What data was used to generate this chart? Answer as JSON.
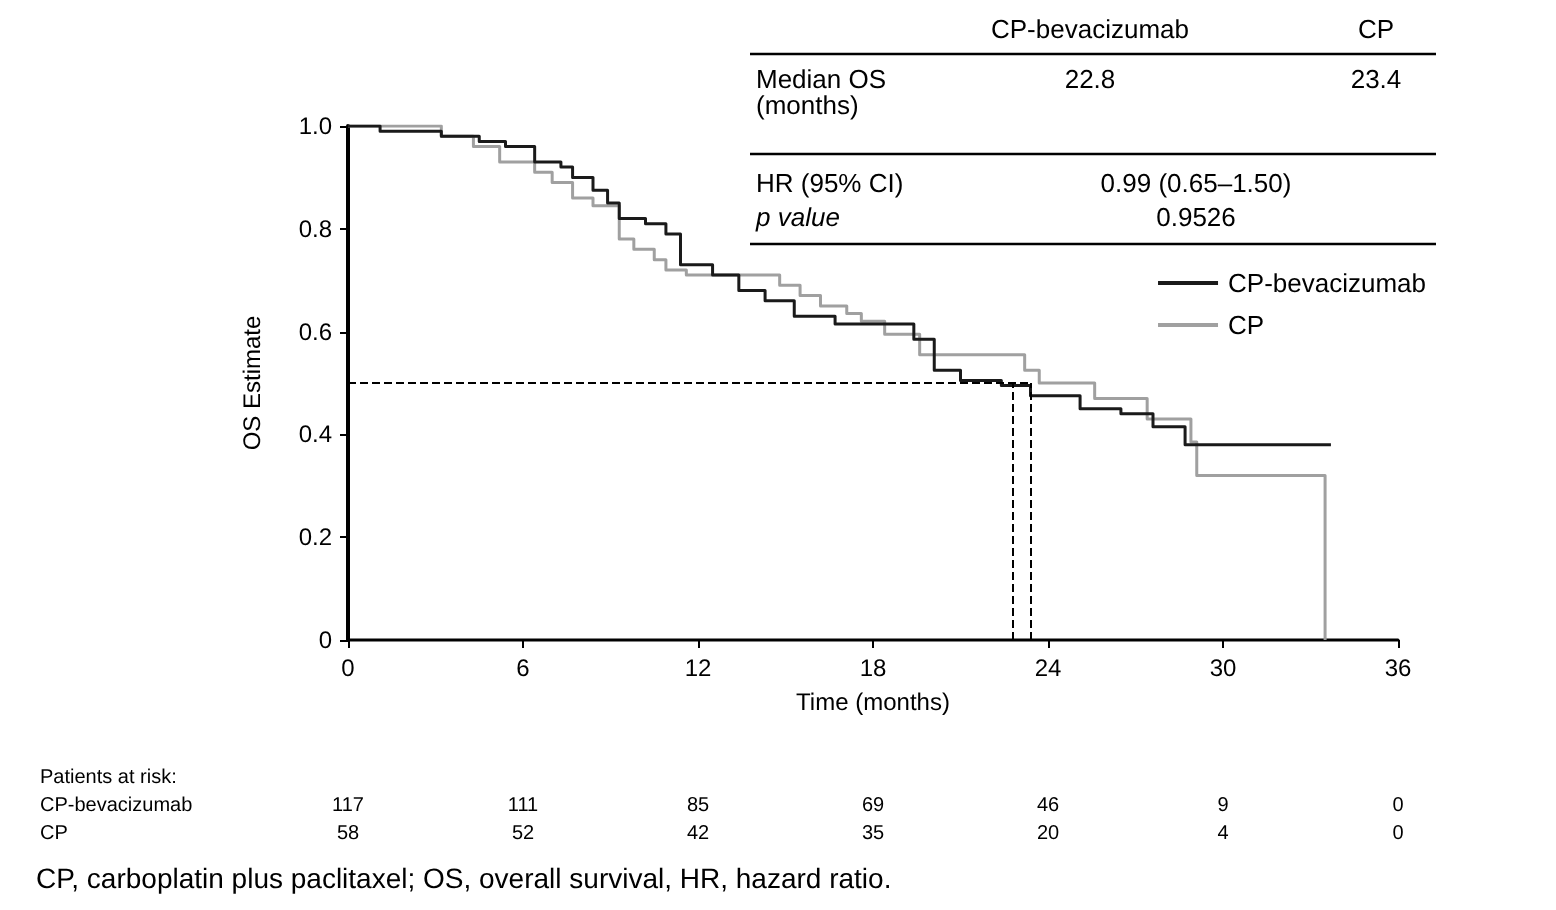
{
  "chart_data": {
    "type": "step",
    "xlabel": "Time (months)",
    "ylabel": "OS Estimate",
    "legend": "right",
    "marker": "none",
    "grid": false,
    "xlim": [
      0,
      36
    ],
    "xticks": [
      0,
      6,
      12,
      18,
      24,
      30,
      36
    ],
    "ylim": [
      0,
      1
    ],
    "yticks": [
      0,
      0.2,
      0.4,
      0.6,
      0.8,
      {
        "value": 1,
        "label": "1.0"
      }
    ],
    "series": [
      {
        "name": "CP-bevacizumab",
        "color": "#1a1a1a",
        "x": [
          0,
          1.1,
          3.2,
          4.5,
          5.4,
          6.4,
          7.3,
          7.7,
          8.4,
          8.9,
          9.3,
          10.2,
          10.9,
          11.4,
          12.5,
          13.4,
          14.3,
          15.3,
          16.7,
          17.8,
          19.4,
          20.1,
          21,
          22.4,
          23.4,
          25.1,
          26.5,
          27.6,
          28.7,
          33.7
        ],
        "values": [
          1,
          0.99,
          0.98,
          0.97,
          0.96,
          0.93,
          0.92,
          0.9,
          0.875,
          0.85,
          0.82,
          0.81,
          0.79,
          0.73,
          0.71,
          0.68,
          0.66,
          0.63,
          0.615,
          0.615,
          0.585,
          0.525,
          0.505,
          0.495,
          0.475,
          0.45,
          0.44,
          0.415,
          0.38,
          0.38
        ]
      },
      {
        "name": "CP",
        "color": "#a0a0a0",
        "x": [
          0,
          3.2,
          4.3,
          5.2,
          6.4,
          7,
          7.7,
          8.4,
          9.3,
          9.8,
          10.5,
          10.9,
          11.6,
          14.8,
          15.5,
          16.2,
          17.1,
          17.6,
          18.4,
          19.6,
          23.2,
          23.7,
          25.6,
          27.4,
          28.9,
          29.1,
          33.5,
          33.5
        ],
        "values": [
          1,
          0.98,
          0.96,
          0.93,
          0.91,
          0.89,
          0.86,
          0.845,
          0.78,
          0.76,
          0.74,
          0.72,
          0.71,
          0.69,
          0.67,
          0.65,
          0.635,
          0.62,
          0.595,
          0.555,
          0.525,
          0.5,
          0.47,
          0.43,
          0.385,
          0.32,
          0.32,
          0
        ]
      }
    ],
    "ref_lines": [
      {
        "axis": "y",
        "value": 0.5,
        "line_style": "dashed",
        "color": "#000000"
      },
      {
        "axis": "x",
        "value": 22.8,
        "line_style": "dashed",
        "color": "#000000"
      },
      {
        "axis": "x",
        "value": 23.4,
        "line_style": "dashed",
        "color": "#000000"
      }
    ],
    "annotations": [
      "CP-bevacizumab",
      "CP",
      "Median OS\n(months)",
      "22.8",
      "23.4",
      "HR (95% CI)",
      "0.99 (0.65–1.50)",
      "p value",
      "0.9526",
      "Patients at risk:",
      "CP-bevacizumab",
      "117",
      "111",
      "85",
      "69",
      "46",
      "9",
      "0",
      "CP",
      "58",
      "52",
      "42",
      "35",
      "20",
      "4",
      "0",
      "CP, carboplatin plus paclitaxel; OS, overall survival, HR, hazard ratio."
    ]
  }
}
